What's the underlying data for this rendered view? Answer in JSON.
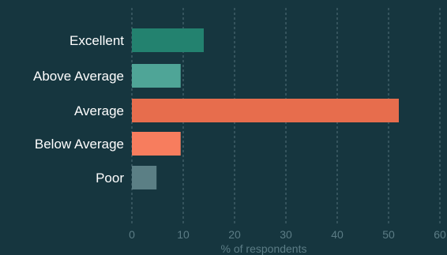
{
  "chart_data": {
    "type": "bar",
    "orientation": "horizontal",
    "categories": [
      "Excellent",
      "Above Average",
      "Average",
      "Below Average",
      "Poor"
    ],
    "values": [
      14,
      9.5,
      52,
      9.5,
      4.8
    ],
    "colors": [
      "#23826f",
      "#4fa597",
      "#e76d4d",
      "#f77d5e",
      "#5b7f85"
    ],
    "xlabel": "% of respondents",
    "xlim": [
      0,
      60
    ],
    "xticks": [
      0,
      10,
      20,
      30,
      40,
      50,
      60
    ],
    "grid": "vertical-dashed",
    "background": "#16363f"
  }
}
